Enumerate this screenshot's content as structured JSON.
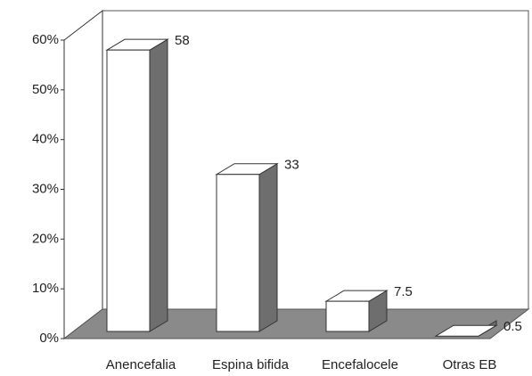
{
  "chart_data": {
    "type": "bar3d",
    "categories": [
      "Anencefalia",
      "Espina bifida",
      "Encefalocele",
      "Otras EB"
    ],
    "values": [
      58,
      33,
      7.5,
      0.5
    ],
    "ylim": [
      0,
      60
    ],
    "yticks": [
      {
        "value": 0,
        "label": "0%"
      },
      {
        "value": 10,
        "label": "10%"
      },
      {
        "value": 20,
        "label": "20%"
      },
      {
        "value": 30,
        "label": "30%"
      },
      {
        "value": 40,
        "label": "40%"
      },
      {
        "value": 50,
        "label": "50%"
      },
      {
        "value": 60,
        "label": "60%"
      }
    ],
    "color": "#ffffff"
  }
}
